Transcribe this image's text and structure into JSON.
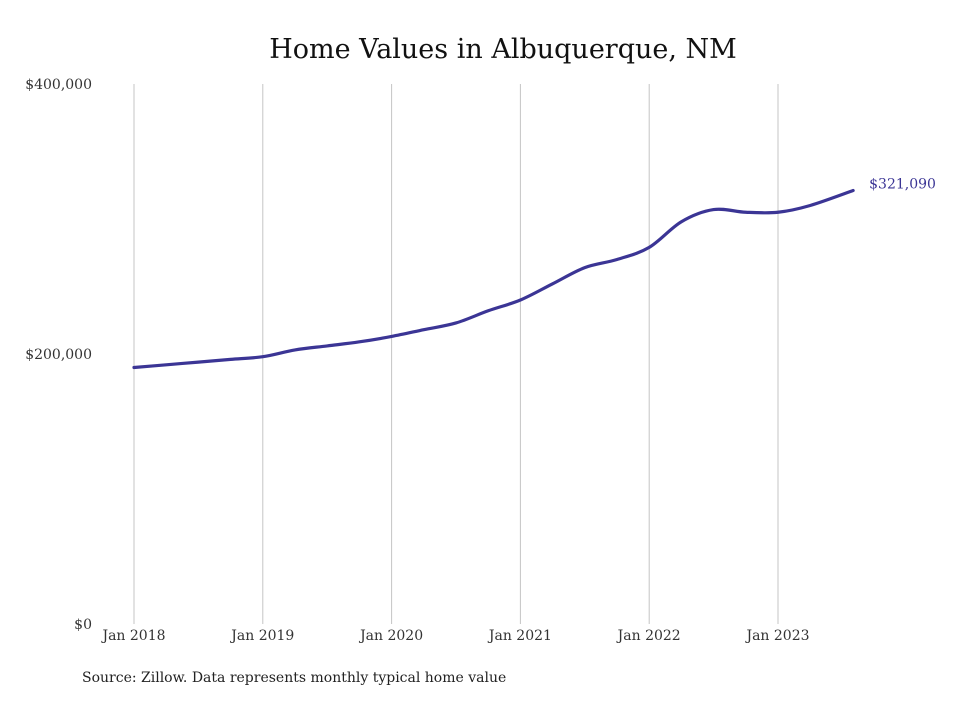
{
  "chart_data": {
    "type": "line",
    "title": "Home Values in Albuquerque, NM",
    "xlabel": "",
    "ylabel": "",
    "y_ticks": [
      "$0",
      "$200,000",
      "$400,000"
    ],
    "y_tick_values": [
      0,
      200000,
      400000
    ],
    "x_ticks": [
      "Jan 2018",
      "Jan 2019",
      "Jan 2020",
      "Jan 2021",
      "Jan 2022",
      "Jan 2023"
    ],
    "x_tick_values": [
      "2018-01",
      "2019-01",
      "2020-01",
      "2021-01",
      "2022-01",
      "2023-01"
    ],
    "ylim": [
      0,
      400000
    ],
    "xlim": [
      "2018-01",
      "2023-08"
    ],
    "grid": "vertical lines at January of each year",
    "legend": "none",
    "series": [
      {
        "color": "#3b3595",
        "end_label": "$321,090",
        "points": [
          {
            "x": "2018-01",
            "y": 190000
          },
          {
            "x": "2018-04",
            "y": 192000
          },
          {
            "x": "2018-07",
            "y": 194000
          },
          {
            "x": "2018-10",
            "y": 196000
          },
          {
            "x": "2019-01",
            "y": 198000
          },
          {
            "x": "2019-04",
            "y": 203000
          },
          {
            "x": "2019-07",
            "y": 206000
          },
          {
            "x": "2019-10",
            "y": 209000
          },
          {
            "x": "2020-01",
            "y": 213000
          },
          {
            "x": "2020-04",
            "y": 218000
          },
          {
            "x": "2020-07",
            "y": 223000
          },
          {
            "x": "2020-10",
            "y": 232000
          },
          {
            "x": "2021-01",
            "y": 240000
          },
          {
            "x": "2021-04",
            "y": 252000
          },
          {
            "x": "2021-07",
            "y": 264000
          },
          {
            "x": "2021-10",
            "y": 270000
          },
          {
            "x": "2022-01",
            "y": 279000
          },
          {
            "x": "2022-04",
            "y": 298000
          },
          {
            "x": "2022-07",
            "y": 307000
          },
          {
            "x": "2022-10",
            "y": 305000
          },
          {
            "x": "2023-01",
            "y": 305000
          },
          {
            "x": "2023-04",
            "y": 310000
          },
          {
            "x": "2023-08",
            "y": 321090
          }
        ]
      }
    ]
  },
  "source": "Source: Zillow. Data represents monthly typical home value"
}
